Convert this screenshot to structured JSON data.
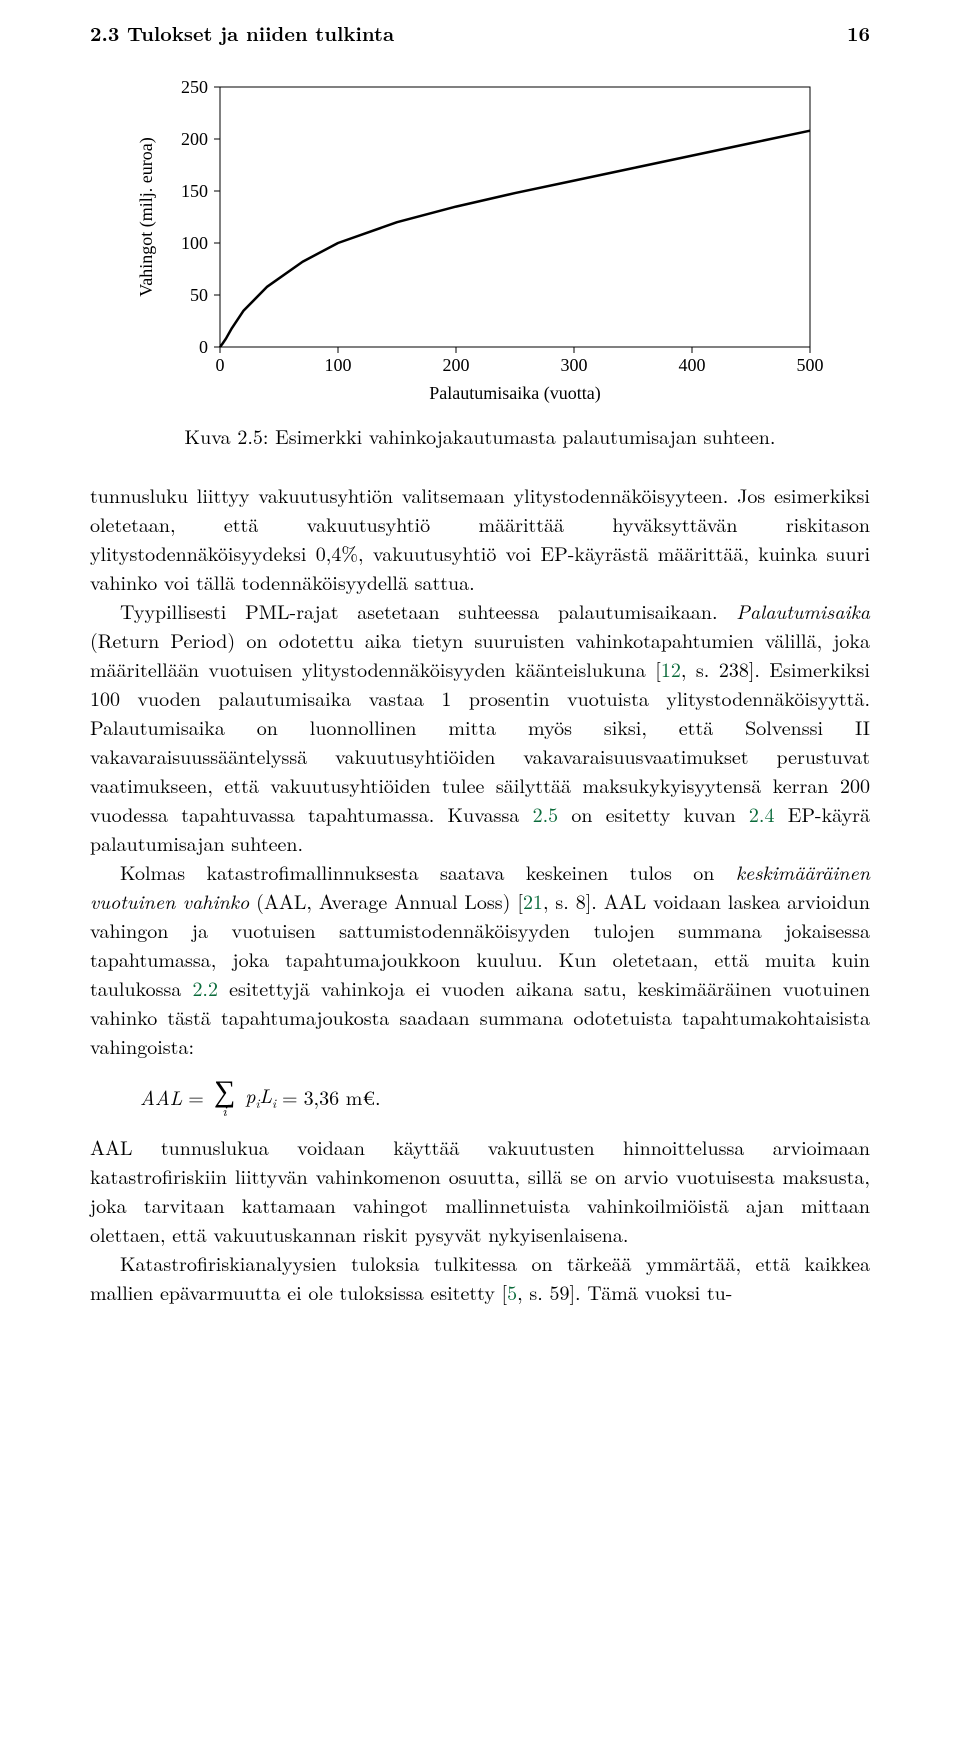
{
  "header": {
    "section": "2.3 Tulokset ja niiden tulkinta",
    "page_number": "16"
  },
  "chart": {
    "type": "line",
    "ylabel": "Vahingot (milj. euroa)",
    "xlabel": "Palautumisaika (vuotta)",
    "xlim": [
      0,
      500
    ],
    "ylim": [
      0,
      250
    ],
    "xticks": [
      0,
      100,
      200,
      300,
      400,
      500
    ],
    "yticks": [
      0,
      50,
      100,
      150,
      200,
      250
    ],
    "xticklabels": [
      "0",
      "100",
      "200",
      "300",
      "400",
      "500"
    ],
    "yticklabels": [
      "0",
      "50",
      "100",
      "150",
      "200",
      "250"
    ],
    "line_color": "#000000",
    "line_width": 2.5,
    "axis_color": "#000000",
    "tick_length": 6,
    "background_color": "#ffffff",
    "label_fontsize": 18,
    "tick_fontsize": 18,
    "data": {
      "x": [
        0,
        2,
        5,
        10,
        20,
        40,
        70,
        100,
        150,
        200,
        250,
        300,
        350,
        400,
        450,
        500
      ],
      "y": [
        0,
        3,
        8,
        18,
        35,
        58,
        82,
        100,
        120,
        135,
        148,
        160,
        172,
        184,
        196,
        208
      ]
    }
  },
  "caption": {
    "label": "Kuva 2.5:",
    "text": "Esimerkki vahinkojakautumasta palautumisajan suhteen."
  },
  "paragraphs": {
    "p1": "tunnusluku liittyy vakuutusyhtiön valitsemaan ylitystodennäköisyyteen. Jos esimerkiksi oletetaan, että vakuutusyhtiö määrittää hyväksyttävän riskitason ylitystodennäköisyydeksi 0,4%, vakuutusyhtiö voi EP-käyrästä määrittää, kuinka suuri vahinko voi tällä todennäköisyydellä sattua.",
    "p2a": "Tyypillisesti PML-rajat asetetaan suhteessa palautumisaikaan. ",
    "p2_ital": "Palautumisaika",
    "p2b": " (Return Period) on odotettu aika tietyn suuruisten vahinkotapahtumien välillä, joka määritellään vuotuisen ylitystodennäköisyyden käänteislukuna [",
    "p2_ref1": "12",
    "p2c": ", s. 238]. Esimerkiksi 100 vuoden palautumisaika vastaa 1 prosentin vuotuista ylitystodennäköisyyttä. Palautumisaika on luonnollinen mitta myös siksi, että Solvenssi II vakavaraisuussääntelyssä vakuutusyhtiöiden vakavaraisuusvaatimukset perustuvat vaatimukseen, että vakuutusyhtiöiden tulee säilyttää maksukykyisyytensä kerran 200 vuodessa tapahtuvassa tapahtumassa. Kuvassa ",
    "p2_ref2": "2.5",
    "p2d": " on esitetty kuvan ",
    "p2_ref3": "2.4",
    "p2e": " EP-käyrä palautumisajan suhteen.",
    "p3a": "Kolmas katastrofimallinnuksesta saatava keskeinen tulos on ",
    "p3_ital": "keskimääräinen vuotuinen vahinko",
    "p3b": " (AAL, Average Annual Loss) [",
    "p3_ref1": "21",
    "p3c": ", s. 8]. AAL voidaan laskea arvioidun vahingon ja vuotuisen sattumistodennäköisyyden tulojen summana jokaisessa tapahtumassa, joka tapahtumajoukkoon kuuluu. Kun oletetaan, että muita kuin taulukossa ",
    "p3_ref2": "2.2",
    "p3d": " esitettyjä vahinkoja ei vuoden aikana satu, keskimääräinen vuotuinen vahinko tästä tapahtumajoukosta saadaan summana odotetuista tapahtumakohtaisista vahingoista:",
    "eq_lhs": "AAL",
    "eq_val": "3,36 m€.",
    "p4": "AAL tunnuslukua voidaan käyttää vakuutusten hinnoittelussa arvioimaan katastrofiriskiin liittyvän vahinkomenon osuutta, sillä se on arvio vuotuisesta maksusta, joka tarvitaan kattamaan vahingot mallinnetuista vahinkoilmiöistä ajan mittaan olettaen, että vakuutuskannan riskit pysyvät nykyisenlaisena.",
    "p5a": "Katastrofiriskianalyysien tuloksia tulkitessa on tärkeää ymmärtää, että kaikkea mallien epävarmuutta ei ole tuloksissa esitetty [",
    "p5_ref1": "5",
    "p5b": ", s. 59]. Tämä vuoksi tu-"
  }
}
